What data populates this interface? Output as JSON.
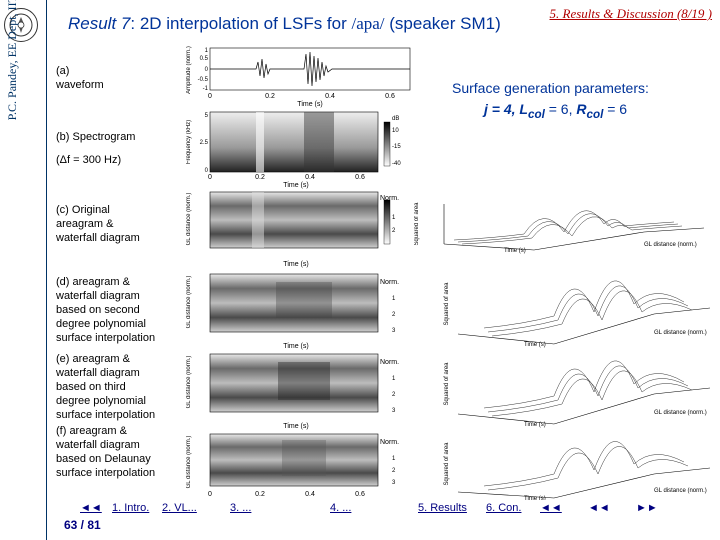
{
  "header": {
    "section_ref": "5. Results & Discussion (8/19 )",
    "title_prefix": "Result 7",
    "title_mid": ": 2D interpolation of LSFs for ",
    "title_phoneme": "/apa/",
    "title_suffix": " (speaker SM1)"
  },
  "credit": "P.C. Pandey, EE Dept, IIT Bombay",
  "params": {
    "heading": "Surface generation parameters:",
    "j_label": "j = 4,",
    "lcol_label": "L",
    "lcol_sub": "col",
    "lcol_value": " = 6,",
    "rcol_label": "R",
    "rcol_sub": "col",
    "rcol_value": " = 6"
  },
  "captions": {
    "a": [
      "(a)",
      "waveform"
    ],
    "b1": "(b) Spectrogram",
    "b2": "(Δf = 300 Hz)",
    "c": [
      "(c) Original",
      "areagram &",
      "waterfall diagram"
    ],
    "d": [
      "(d) areagram &",
      "waterfall diagram",
      "based on second",
      "degree polynomial",
      "surface interpolation"
    ],
    "e": [
      "(e) areagram &",
      "waterfall diagram",
      "based on third",
      "degree polynomial",
      "surface interpolation"
    ],
    "f": [
      "(f) areagram &",
      "waterfall diagram",
      "based on Delaunay",
      "surface interpolation"
    ]
  },
  "figure": {
    "waveform_ylabel": "Amplitude (norm.)",
    "waveform_yticks": [
      "1",
      "0.5",
      "0",
      "-0.5",
      "-1"
    ],
    "spec_ylabel": "Frequency (kHz)",
    "spec_yticks": [
      "5",
      "2.5",
      "0"
    ],
    "spec_colorbar_unit": "dB",
    "spec_colorbar_ticks": [
      "10",
      "-15",
      "-40"
    ],
    "xticks": [
      "0",
      "0.2",
      "0.4",
      "0.6"
    ],
    "xlabel": "Time (s)",
    "area_ylabel": "GL distance (norm.)",
    "area_yticks": [
      "0",
      "1",
      "2",
      "3"
    ],
    "area_colorbar_label": "Norm.",
    "waterfall_zlabel": "Squared of area",
    "waterfall_xlabel": "Time (s)",
    "waterfall_ylabel": "GL distance (norm.)"
  },
  "nav": {
    "back": "◄◄",
    "items": [
      "1. Intro.",
      "2. VL...",
      "3. ...",
      "4. ...",
      "5. Results",
      "6. Con."
    ],
    "prev": "◄◄",
    "next_a": "◄◄",
    "next_b": "►►"
  },
  "page": "63 / 81"
}
